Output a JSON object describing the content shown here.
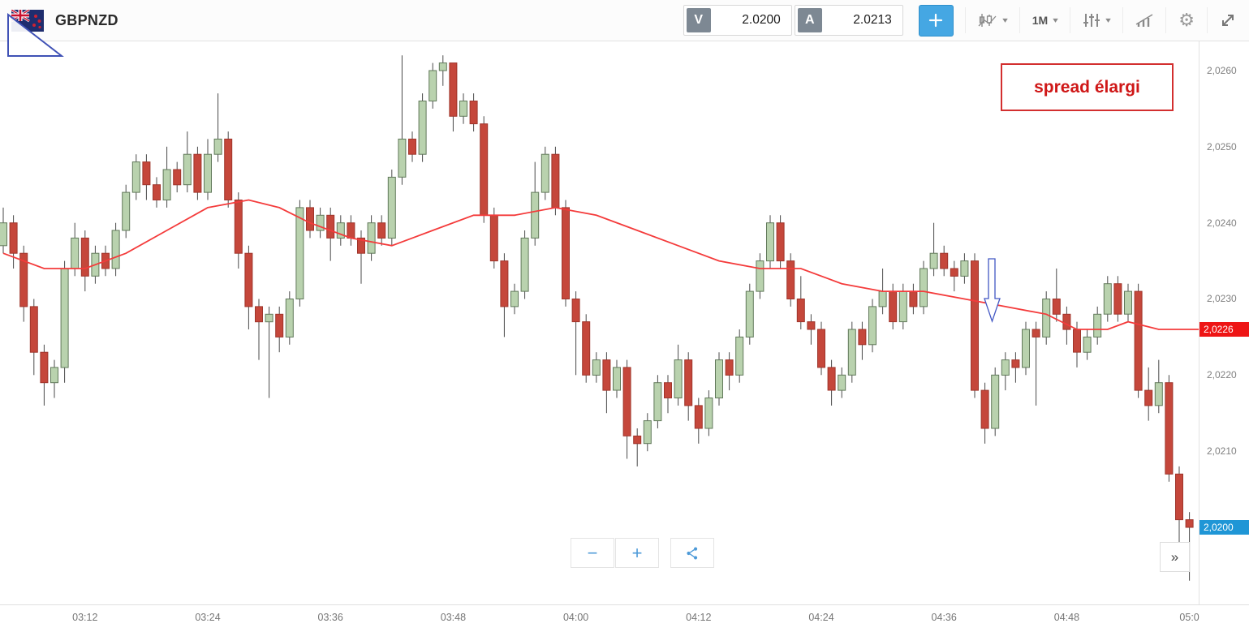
{
  "header": {
    "symbol": "GBPNZD",
    "sell": {
      "label": "V",
      "price": "2.0200"
    },
    "buy": {
      "label": "A",
      "price": "2.0213"
    },
    "timeframe": "1M"
  },
  "icons": {
    "caret": "▾",
    "gear": "⚙",
    "collapse": "»",
    "zoom_out": "−",
    "zoom_in": "+"
  },
  "annotations": {
    "spread_note": "spread élargi"
  },
  "price_tags": {
    "ma": "2,0226",
    "last": "2,0200"
  },
  "colors": {
    "up_fill": "#b9d2ae",
    "up_stroke": "#61795a",
    "down_fill": "#c5473b",
    "down_stroke": "#9e352b",
    "ma_line": "#f43b3b",
    "ma_tag": "#ee1515",
    "last_tag": "#1f96d6",
    "accent_blue": "#45a7e3",
    "annotation_red": "#d32f2f",
    "annotation_blue": "#4257c4"
  },
  "chart_data": {
    "type": "candlestick",
    "symbol": "GBPNZD",
    "timeframe": "1M",
    "grid": "off",
    "ylim": [
      2.019,
      2.0264
    ],
    "y_ticks": [
      {
        "value": 2.026,
        "label": "2,0260"
      },
      {
        "value": 2.025,
        "label": "2,0250"
      },
      {
        "value": 2.024,
        "label": "2,0240"
      },
      {
        "value": 2.023,
        "label": "2,0230"
      },
      {
        "value": 2.022,
        "label": "2,0220"
      },
      {
        "value": 2.021,
        "label": "2,0210"
      },
      {
        "value": 2.02,
        "label": "2,0200"
      }
    ],
    "x_labels": [
      {
        "index": 8,
        "label": "03:12"
      },
      {
        "index": 20,
        "label": "03:24"
      },
      {
        "index": 32,
        "label": "03:36"
      },
      {
        "index": 44,
        "label": "03:48"
      },
      {
        "index": 56,
        "label": "04:00"
      },
      {
        "index": 68,
        "label": "04:12"
      },
      {
        "index": 80,
        "label": "04:24"
      },
      {
        "index": 92,
        "label": "04:36"
      },
      {
        "index": 104,
        "label": "04:48"
      },
      {
        "index": 116,
        "label": "05:0"
      }
    ],
    "candles": [
      [
        2.0237,
        2.0242,
        2.0236,
        2.024
      ],
      [
        2.024,
        2.0241,
        2.0234,
        2.0236
      ],
      [
        2.0236,
        2.0237,
        2.0227,
        2.0229
      ],
      [
        2.0229,
        2.023,
        2.022,
        2.0223
      ],
      [
        2.0223,
        2.0224,
        2.0216,
        2.0219
      ],
      [
        2.0219,
        2.0222,
        2.0217,
        2.0221
      ],
      [
        2.0221,
        2.0235,
        2.0219,
        2.0234
      ],
      [
        2.0234,
        2.024,
        2.0233,
        2.0238
      ],
      [
        2.0238,
        2.0239,
        2.0231,
        2.0233
      ],
      [
        2.0233,
        2.0237,
        2.0232,
        2.0236
      ],
      [
        2.0236,
        2.0237,
        2.0233,
        2.0234
      ],
      [
        2.0234,
        2.024,
        2.0233,
        2.0239
      ],
      [
        2.0239,
        2.0245,
        2.0238,
        2.0244
      ],
      [
        2.0244,
        2.0249,
        2.0243,
        2.0248
      ],
      [
        2.0248,
        2.0249,
        2.0243,
        2.0245
      ],
      [
        2.0245,
        2.0246,
        2.0242,
        2.0243
      ],
      [
        2.0243,
        2.025,
        2.0242,
        2.0247
      ],
      [
        2.0247,
        2.0248,
        2.0244,
        2.0245
      ],
      [
        2.0245,
        2.0252,
        2.0244,
        2.0249
      ],
      [
        2.0249,
        2.025,
        2.0243,
        2.0244
      ],
      [
        2.0244,
        2.0251,
        2.0243,
        2.0249
      ],
      [
        2.0249,
        2.0257,
        2.0248,
        2.0251
      ],
      [
        2.0251,
        2.0252,
        2.0242,
        2.0243
      ],
      [
        2.0243,
        2.0244,
        2.0234,
        2.0236
      ],
      [
        2.0236,
        2.0237,
        2.0226,
        2.0229
      ],
      [
        2.0229,
        2.023,
        2.0222,
        2.0227
      ],
      [
        2.0227,
        2.0229,
        2.0217,
        2.0228
      ],
      [
        2.0228,
        2.0229,
        2.0223,
        2.0225
      ],
      [
        2.0225,
        2.0231,
        2.0224,
        2.023
      ],
      [
        2.023,
        2.0243,
        2.0229,
        2.0242
      ],
      [
        2.0242,
        2.0243,
        2.0238,
        2.0239
      ],
      [
        2.0239,
        2.0242,
        2.0238,
        2.0241
      ],
      [
        2.0241,
        2.0242,
        2.0235,
        2.0238
      ],
      [
        2.0238,
        2.0241,
        2.0237,
        2.024
      ],
      [
        2.024,
        2.0241,
        2.0237,
        2.0238
      ],
      [
        2.0238,
        2.0239,
        2.0232,
        2.0236
      ],
      [
        2.0236,
        2.0241,
        2.0235,
        2.024
      ],
      [
        2.024,
        2.0241,
        2.0237,
        2.0238
      ],
      [
        2.0238,
        2.0247,
        2.0237,
        2.0246
      ],
      [
        2.0246,
        2.0262,
        2.0245,
        2.0251
      ],
      [
        2.0251,
        2.0252,
        2.0248,
        2.0249
      ],
      [
        2.0249,
        2.0257,
        2.0248,
        2.0256
      ],
      [
        2.0256,
        2.0261,
        2.0255,
        2.026
      ],
      [
        2.026,
        2.0262,
        2.0258,
        2.0261
      ],
      [
        2.0261,
        2.0261,
        2.0252,
        2.0254
      ],
      [
        2.0254,
        2.0257,
        2.0253,
        2.0256
      ],
      [
        2.0256,
        2.0257,
        2.0252,
        2.0253
      ],
      [
        2.0253,
        2.0254,
        2.024,
        2.0241
      ],
      [
        2.0241,
        2.0242,
        2.0234,
        2.0235
      ],
      [
        2.0235,
        2.0236,
        2.0225,
        2.0229
      ],
      [
        2.0229,
        2.0232,
        2.0228,
        2.0231
      ],
      [
        2.0231,
        2.0239,
        2.023,
        2.0238
      ],
      [
        2.0238,
        2.0248,
        2.0237,
        2.0244
      ],
      [
        2.0244,
        2.025,
        2.0243,
        2.0249
      ],
      [
        2.0249,
        2.025,
        2.0241,
        2.0242
      ],
      [
        2.0242,
        2.0243,
        2.0229,
        2.023
      ],
      [
        2.023,
        2.0231,
        2.022,
        2.0227
      ],
      [
        2.0227,
        2.0228,
        2.0219,
        2.022
      ],
      [
        2.022,
        2.0223,
        2.0219,
        2.0222
      ],
      [
        2.0222,
        2.0223,
        2.0215,
        2.0218
      ],
      [
        2.0218,
        2.0222,
        2.0217,
        2.0221
      ],
      [
        2.0221,
        2.0222,
        2.0209,
        2.0212
      ],
      [
        2.0212,
        2.0213,
        2.0208,
        2.0211
      ],
      [
        2.0211,
        2.0215,
        2.021,
        2.0214
      ],
      [
        2.0214,
        2.022,
        2.0213,
        2.0219
      ],
      [
        2.0219,
        2.022,
        2.0215,
        2.0217
      ],
      [
        2.0217,
        2.0224,
        2.0216,
        2.0222
      ],
      [
        2.0222,
        2.0223,
        2.0214,
        2.0216
      ],
      [
        2.0216,
        2.0217,
        2.0211,
        2.0213
      ],
      [
        2.0213,
        2.0218,
        2.0212,
        2.0217
      ],
      [
        2.0217,
        2.0223,
        2.0216,
        2.0222
      ],
      [
        2.0222,
        2.0223,
        2.0218,
        2.022
      ],
      [
        2.022,
        2.0226,
        2.0219,
        2.0225
      ],
      [
        2.0225,
        2.0232,
        2.0224,
        2.0231
      ],
      [
        2.0231,
        2.0236,
        2.023,
        2.0235
      ],
      [
        2.0235,
        2.0241,
        2.0234,
        2.024
      ],
      [
        2.024,
        2.0241,
        2.0234,
        2.0235
      ],
      [
        2.0235,
        2.0236,
        2.0229,
        2.023
      ],
      [
        2.023,
        2.0233,
        2.0226,
        2.0227
      ],
      [
        2.0227,
        2.0228,
        2.0224,
        2.0226
      ],
      [
        2.0226,
        2.0227,
        2.022,
        2.0221
      ],
      [
        2.0221,
        2.0222,
        2.0216,
        2.0218
      ],
      [
        2.0218,
        2.0221,
        2.0217,
        2.022
      ],
      [
        2.022,
        2.0227,
        2.0219,
        2.0226
      ],
      [
        2.0226,
        2.0227,
        2.0222,
        2.0224
      ],
      [
        2.0224,
        2.023,
        2.0223,
        2.0229
      ],
      [
        2.0229,
        2.0234,
        2.0228,
        2.0231
      ],
      [
        2.0231,
        2.0232,
        2.0226,
        2.0227
      ],
      [
        2.0227,
        2.0232,
        2.0226,
        2.0231
      ],
      [
        2.0231,
        2.0232,
        2.0228,
        2.0229
      ],
      [
        2.0229,
        2.0235,
        2.0228,
        2.0234
      ],
      [
        2.0234,
        2.024,
        2.0233,
        2.0236
      ],
      [
        2.0236,
        2.0237,
        2.0233,
        2.0234
      ],
      [
        2.0234,
        2.0235,
        2.0231,
        2.0233
      ],
      [
        2.0233,
        2.0236,
        2.0232,
        2.0235
      ],
      [
        2.0235,
        2.0236,
        2.0217,
        2.0218
      ],
      [
        2.0218,
        2.0219,
        2.0211,
        2.0213
      ],
      [
        2.0213,
        2.0221,
        2.0212,
        2.022
      ],
      [
        2.022,
        2.0223,
        2.0218,
        2.0222
      ],
      [
        2.0222,
        2.0223,
        2.0219,
        2.0221
      ],
      [
        2.0221,
        2.0227,
        2.022,
        2.0226
      ],
      [
        2.0226,
        2.0227,
        2.0216,
        2.0225
      ],
      [
        2.0225,
        2.0231,
        2.0224,
        2.023
      ],
      [
        2.023,
        2.0234,
        2.0227,
        2.0228
      ],
      [
        2.0228,
        2.0229,
        2.0224,
        2.0226
      ],
      [
        2.0226,
        2.0227,
        2.0221,
        2.0223
      ],
      [
        2.0223,
        2.0226,
        2.0222,
        2.0225
      ],
      [
        2.0225,
        2.0229,
        2.0224,
        2.0228
      ],
      [
        2.0228,
        2.0233,
        2.0227,
        2.0232
      ],
      [
        2.0232,
        2.0233,
        2.0227,
        2.0228
      ],
      [
        2.0228,
        2.0232,
        2.0227,
        2.0231
      ],
      [
        2.0231,
        2.0232,
        2.0217,
        2.0218
      ],
      [
        2.0218,
        2.0221,
        2.0214,
        2.0216
      ],
      [
        2.0216,
        2.0222,
        2.0215,
        2.0219
      ],
      [
        2.0219,
        2.022,
        2.0206,
        2.0207
      ],
      [
        2.0207,
        2.0208,
        2.0198,
        2.0201
      ],
      [
        2.0201,
        2.0202,
        2.0193,
        2.02
      ]
    ],
    "ma_points": [
      [
        0,
        2.0236
      ],
      [
        4,
        2.0234
      ],
      [
        8,
        2.0234
      ],
      [
        12,
        2.0236
      ],
      [
        16,
        2.0239
      ],
      [
        20,
        2.0242
      ],
      [
        24,
        2.0243
      ],
      [
        27,
        2.0242
      ],
      [
        30,
        2.024
      ],
      [
        34,
        2.0238
      ],
      [
        38,
        2.0237
      ],
      [
        42,
        2.0239
      ],
      [
        46,
        2.0241
      ],
      [
        50,
        2.0241
      ],
      [
        54,
        2.0242
      ],
      [
        58,
        2.0241
      ],
      [
        62,
        2.0239
      ],
      [
        66,
        2.0237
      ],
      [
        70,
        2.0235
      ],
      [
        74,
        2.0234
      ],
      [
        78,
        2.0234
      ],
      [
        82,
        2.0232
      ],
      [
        86,
        2.0231
      ],
      [
        90,
        2.0231
      ],
      [
        94,
        2.023
      ],
      [
        98,
        2.0229
      ],
      [
        102,
        2.0228
      ],
      [
        105,
        2.0226
      ],
      [
        108,
        2.0226
      ],
      [
        110,
        2.0227
      ],
      [
        113,
        2.0226
      ],
      [
        117,
        2.0226
      ]
    ],
    "ma_value": 2.0226,
    "last_price": 2.02
  }
}
